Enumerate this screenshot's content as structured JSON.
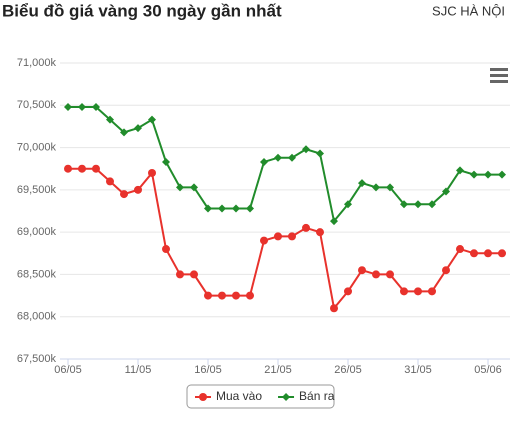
{
  "chart_data": {
    "type": "line",
    "title": "Biểu đồ giá vàng 30 ngày gần nhất",
    "subtitle": "SJC HÀ NỘI",
    "categories": [
      "06/05",
      null,
      null,
      null,
      null,
      "11/05",
      null,
      null,
      null,
      null,
      "16/05",
      null,
      null,
      null,
      null,
      "21/05",
      null,
      null,
      null,
      null,
      "26/05",
      null,
      null,
      null,
      null,
      "31/05",
      null,
      null,
      null,
      null,
      "05/06",
      null
    ],
    "series": [
      {
        "name": "Mua vào",
        "color": "#e8322c",
        "marker": "circle",
        "values": [
          69750,
          69750,
          69750,
          69600,
          69450,
          69500,
          69700,
          68800,
          68500,
          68500,
          68250,
          68250,
          68250,
          68250,
          68900,
          68950,
          68950,
          69050,
          69000,
          68100,
          68300,
          68550,
          68500,
          68500,
          68300,
          68300,
          68300,
          68550,
          68800,
          68750,
          68750,
          68750
        ]
      },
      {
        "name": "Bán ra",
        "color": "#218c2b",
        "marker": "diamond",
        "values": [
          70480,
          70480,
          70480,
          70330,
          70180,
          70230,
          70330,
          69830,
          69530,
          69530,
          69280,
          69280,
          69280,
          69280,
          69830,
          69880,
          69880,
          69980,
          69930,
          69130,
          69330,
          69580,
          69530,
          69530,
          69330,
          69330,
          69330,
          69480,
          69730,
          69680,
          69680,
          69680
        ]
      }
    ],
    "ylim": [
      67500,
      71000
    ],
    "yticks": [
      {
        "value": 67500,
        "label": "67,500k"
      },
      {
        "value": 68000,
        "label": "68,000k"
      },
      {
        "value": 68500,
        "label": "68,500k"
      },
      {
        "value": 69000,
        "label": "69,000k"
      },
      {
        "value": 69500,
        "label": "69,500k"
      },
      {
        "value": 70000,
        "label": "70,000k"
      },
      {
        "value": 70500,
        "label": "70,500k"
      },
      {
        "value": 71000,
        "label": "71,000k"
      }
    ],
    "grid": true,
    "legend": "bottom"
  }
}
